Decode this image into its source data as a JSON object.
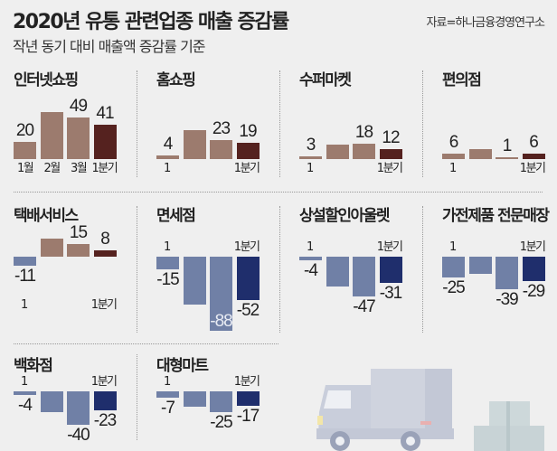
{
  "header": {
    "title": "2020년 유통 관련업종 매출 증감률",
    "subtitle": "작년 동기 대비 매출액 증감률 기준",
    "source": "자료=하나금융경영연구소"
  },
  "colors": {
    "pos_month": "#9c7b6e",
    "pos_quarter": "#55221f",
    "neg_month": "#7080a6",
    "neg_quarter": "#1f2e6c"
  },
  "chart_data": [
    {
      "type": "bar",
      "title": "인터넷쇼핑",
      "categories": [
        "1월",
        "2월",
        "3월",
        "1분기"
      ],
      "values": [
        20,
        56,
        49,
        41
      ],
      "labels": [
        "20",
        null,
        "49",
        "41"
      ],
      "x_labels": [
        "1월",
        "2월",
        "3월",
        "1분기"
      ]
    },
    {
      "type": "bar",
      "title": "홈쇼핑",
      "categories": [
        "1월",
        "2월",
        "3월",
        "1분기"
      ],
      "values": [
        4,
        34,
        23,
        19
      ],
      "labels": [
        "4",
        null,
        "23",
        "19"
      ],
      "x_labels": [
        "1",
        "1분기"
      ]
    },
    {
      "type": "bar",
      "title": "수퍼마켓",
      "categories": [
        "1월",
        "2월",
        "3월",
        "1분기"
      ],
      "values": [
        3,
        17,
        18,
        12
      ],
      "labels": [
        "3",
        null,
        "18",
        "12"
      ],
      "x_labels": [
        "1",
        "1분기"
      ]
    },
    {
      "type": "bar",
      "title": "편의점",
      "categories": [
        "1월",
        "2월",
        "3월",
        "1분기"
      ],
      "values": [
        6,
        12,
        1,
        6
      ],
      "labels": [
        "6",
        null,
        "1",
        "6"
      ],
      "x_labels": [
        "1",
        "1분기"
      ]
    },
    {
      "type": "bar",
      "title": "택배서비스",
      "categories": [
        "1월",
        "2월",
        "3월",
        "1분기"
      ],
      "values": [
        -11,
        22,
        15,
        8
      ],
      "labels": [
        "-11",
        null,
        "15",
        "8"
      ],
      "x_labels": [
        "1",
        "1분기"
      ]
    },
    {
      "type": "bar",
      "title": "면세점",
      "categories": [
        "1월",
        "2월",
        "3월",
        "1분기"
      ],
      "values": [
        -15,
        -57,
        -88,
        -52
      ],
      "labels": [
        "-15",
        null,
        "-88",
        "-52"
      ],
      "x_labels": [
        "1",
        "1분기"
      ]
    },
    {
      "type": "bar",
      "title": "상설할인아울렛",
      "categories": [
        "1월",
        "2월",
        "3월",
        "1분기"
      ],
      "values": [
        -4,
        -36,
        -47,
        -31
      ],
      "labels": [
        "-4",
        null,
        "-47",
        "-31"
      ],
      "x_labels": [
        "1",
        "1분기"
      ]
    },
    {
      "type": "bar",
      "title": "가전제품 전문매장",
      "categories": [
        "1월",
        "2월",
        "3월",
        "1분기"
      ],
      "values": [
        -25,
        -20,
        -39,
        -29
      ],
      "labels": [
        "-25",
        null,
        "-39",
        "-29"
      ],
      "x_labels": [
        "1",
        "1분기"
      ]
    },
    {
      "type": "bar",
      "title": "백화점",
      "categories": [
        "1월",
        "2월",
        "3월",
        "1분기"
      ],
      "values": [
        -4,
        -25,
        -40,
        -23
      ],
      "labels": [
        "-4",
        null,
        "-40",
        "-23"
      ],
      "x_labels": [
        "1",
        "1분기"
      ]
    },
    {
      "type": "bar",
      "title": "대형마트",
      "categories": [
        "1월",
        "2월",
        "3월",
        "1분기"
      ],
      "values": [
        -7,
        -18,
        -25,
        -17
      ],
      "labels": [
        "-7",
        null,
        "-25",
        "-17"
      ],
      "x_labels": [
        "1",
        "1분기"
      ]
    }
  ]
}
